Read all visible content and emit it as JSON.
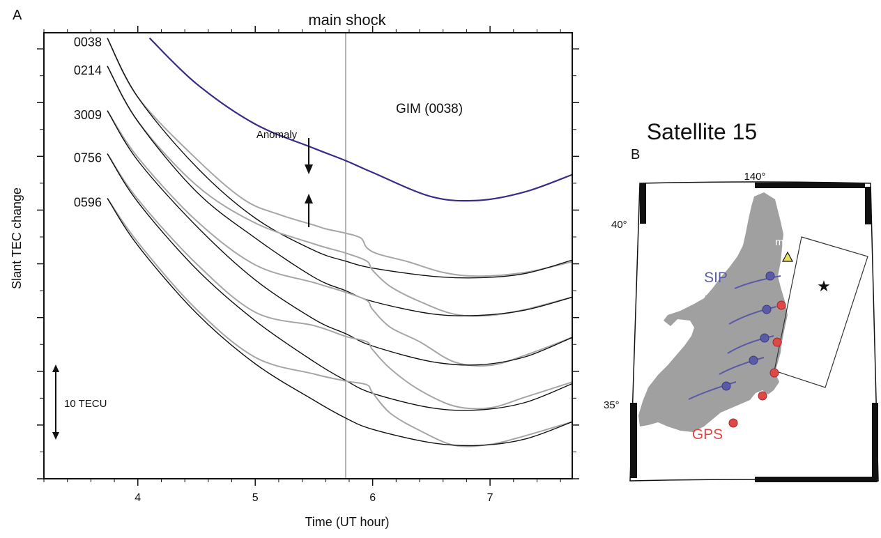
{
  "panel_a": {
    "label": "A",
    "title": "main shock",
    "xlabel": "Time (UT hour)",
    "ylabel": "Slant TEC change",
    "scale_bar_label": "10 TECU",
    "anomaly_label": "Anomaly",
    "gim_label": "GIM (0038)"
  },
  "panel_b": {
    "label": "B",
    "title": "Satellite 15",
    "lon_label": "140°",
    "lat_labels": [
      "40°",
      "35°"
    ],
    "station_label": "mizu",
    "sip_label": "SIP",
    "gps_label": "GPS"
  },
  "colors": {
    "observed": "#a6a6a6",
    "model": "#111111",
    "gim": "#3c2a86",
    "sip": "#5a5aa6",
    "gps": "#e04848",
    "land": "#a0a0a0",
    "mainshock_line": "#b3b3b3"
  },
  "chart_data": {
    "type": "line",
    "title": "main shock",
    "xlabel": "Time (UT hour)",
    "ylabel": "Slant TEC change",
    "xlim": [
      3.2,
      7.7
    ],
    "xticks": [
      4,
      5,
      6,
      7
    ],
    "xtick_labels": [
      "4",
      "5",
      "6",
      "7"
    ],
    "mainshock_time": 5.77,
    "scale_bar_tecu": 10,
    "ylim_tecu": [
      -50,
      33
    ],
    "series": [
      {
        "name": "0038",
        "offset": 2,
        "start": 3.74,
        "model": [
          [
            3.74,
            32.0
          ],
          [
            4.0,
            21.0
          ],
          [
            4.5,
            8.0
          ],
          [
            5.0,
            -1.5
          ],
          [
            5.5,
            -7.5
          ],
          [
            5.77,
            -9.5
          ],
          [
            6.0,
            -10.8
          ],
          [
            6.5,
            -12.3
          ],
          [
            6.9,
            -12.6
          ],
          [
            7.3,
            -11.8
          ],
          [
            7.7,
            -9.3
          ]
        ],
        "observed": [
          [
            3.74,
            32.0
          ],
          [
            4.0,
            21.0
          ],
          [
            4.5,
            9.5
          ],
          [
            4.9,
            2.0
          ],
          [
            5.2,
            -0.8
          ],
          [
            5.5,
            -2.8
          ],
          [
            5.6,
            -3.5
          ],
          [
            5.77,
            -4.3
          ],
          [
            5.9,
            -5.2
          ],
          [
            5.95,
            -7.0
          ],
          [
            6.05,
            -8.2
          ],
          [
            6.3,
            -9.6
          ],
          [
            6.6,
            -11.6
          ],
          [
            6.9,
            -12.3
          ],
          [
            7.3,
            -11.6
          ],
          [
            7.7,
            -9.6
          ]
        ]
      },
      {
        "name": "0214",
        "offset": 2,
        "start": 3.74,
        "model": [
          [
            3.74,
            26.8
          ],
          [
            4.0,
            16.5
          ],
          [
            4.5,
            3.4
          ],
          [
            5.0,
            -5.2
          ],
          [
            5.5,
            -12.5
          ],
          [
            5.77,
            -15.0
          ],
          [
            6.0,
            -17.0
          ],
          [
            6.5,
            -19.3
          ],
          [
            6.9,
            -19.6
          ],
          [
            7.3,
            -18.6
          ],
          [
            7.7,
            -16.2
          ]
        ],
        "observed": [
          [
            3.74,
            26.8
          ],
          [
            4.0,
            16.5
          ],
          [
            4.5,
            4.6
          ],
          [
            5.0,
            -2.4
          ],
          [
            5.5,
            -6.3
          ],
          [
            5.77,
            -8.0
          ],
          [
            5.95,
            -9.5
          ],
          [
            6.0,
            -11.2
          ],
          [
            6.15,
            -14.2
          ],
          [
            6.4,
            -17.0
          ],
          [
            6.7,
            -19.4
          ],
          [
            7.0,
            -19.6
          ],
          [
            7.3,
            -18.5
          ],
          [
            7.7,
            -16.2
          ]
        ]
      },
      {
        "name": "3009",
        "offset": 2,
        "start": 3.74,
        "model": [
          [
            3.74,
            18.5
          ],
          [
            4.0,
            9.2
          ],
          [
            4.5,
            -3.0
          ],
          [
            5.0,
            -13.0
          ],
          [
            5.5,
            -20.3
          ],
          [
            5.77,
            -23.0
          ],
          [
            6.0,
            -25.3
          ],
          [
            6.5,
            -28.2
          ],
          [
            6.9,
            -28.8
          ],
          [
            7.3,
            -27.3
          ],
          [
            7.7,
            -23.7
          ]
        ],
        "observed": [
          [
            3.74,
            18.5
          ],
          [
            4.0,
            9.8
          ],
          [
            4.5,
            -2.0
          ],
          [
            5.0,
            -10.2
          ],
          [
            5.5,
            -13.5
          ],
          [
            5.77,
            -15.3
          ],
          [
            5.95,
            -16.8
          ],
          [
            6.0,
            -18.5
          ],
          [
            6.15,
            -21.8
          ],
          [
            6.4,
            -24.5
          ],
          [
            6.7,
            -28.3
          ],
          [
            7.0,
            -28.9
          ],
          [
            7.3,
            -27.0
          ],
          [
            7.7,
            -23.7
          ]
        ]
      },
      {
        "name": "0756",
        "offset": 2,
        "start": 3.74,
        "model": [
          [
            3.74,
            10.5
          ],
          [
            4.0,
            1.5
          ],
          [
            4.5,
            -11.0
          ],
          [
            5.0,
            -20.6
          ],
          [
            5.5,
            -28.2
          ],
          [
            5.77,
            -31.7
          ],
          [
            6.0,
            -34.1
          ],
          [
            6.5,
            -36.8
          ],
          [
            6.9,
            -37.2
          ],
          [
            7.3,
            -35.8
          ],
          [
            7.7,
            -32.3
          ]
        ],
        "observed": [
          [
            3.74,
            10.5
          ],
          [
            4.0,
            2.0
          ],
          [
            4.5,
            -10.0
          ],
          [
            5.0,
            -19.0
          ],
          [
            5.5,
            -21.5
          ],
          [
            5.77,
            -23.5
          ],
          [
            5.95,
            -24.5
          ],
          [
            6.0,
            -26.0
          ],
          [
            6.15,
            -29.5
          ],
          [
            6.4,
            -33.5
          ],
          [
            6.7,
            -36.5
          ],
          [
            7.0,
            -36.8
          ],
          [
            7.3,
            -34.8
          ],
          [
            7.7,
            -32.0
          ]
        ]
      },
      {
        "name": "0596",
        "offset": 2,
        "start": 3.74,
        "model": [
          [
            3.74,
            2.2
          ],
          [
            4.0,
            -6.6
          ],
          [
            4.5,
            -19.2
          ],
          [
            5.0,
            -28.6
          ],
          [
            5.5,
            -35.4
          ],
          [
            5.77,
            -38.7
          ],
          [
            6.0,
            -40.8
          ],
          [
            6.5,
            -43.3
          ],
          [
            6.9,
            -43.8
          ],
          [
            7.3,
            -42.6
          ],
          [
            7.7,
            -39.4
          ]
        ],
        "observed": [
          [
            3.74,
            2.2
          ],
          [
            4.0,
            -6.0
          ],
          [
            4.5,
            -18.5
          ],
          [
            5.0,
            -27.4
          ],
          [
            5.5,
            -30.5
          ],
          [
            5.77,
            -31.8
          ],
          [
            5.95,
            -32.5
          ],
          [
            6.0,
            -34.0
          ],
          [
            6.15,
            -37.8
          ],
          [
            6.4,
            -41.0
          ],
          [
            6.7,
            -43.8
          ],
          [
            7.0,
            -43.6
          ],
          [
            7.3,
            -42.0
          ],
          [
            7.7,
            -39.4
          ]
        ]
      },
      {
        "name": "GIM (0038)",
        "gim": true,
        "model": [
          [
            4.1,
            32.0
          ],
          [
            4.5,
            23.5
          ],
          [
            5.0,
            16.0
          ],
          [
            5.5,
            11.5
          ],
          [
            5.77,
            9.2
          ],
          [
            6.0,
            7.0
          ],
          [
            6.5,
            2.5
          ],
          [
            6.9,
            1.8
          ],
          [
            7.3,
            3.4
          ],
          [
            7.7,
            6.6
          ]
        ]
      }
    ]
  }
}
